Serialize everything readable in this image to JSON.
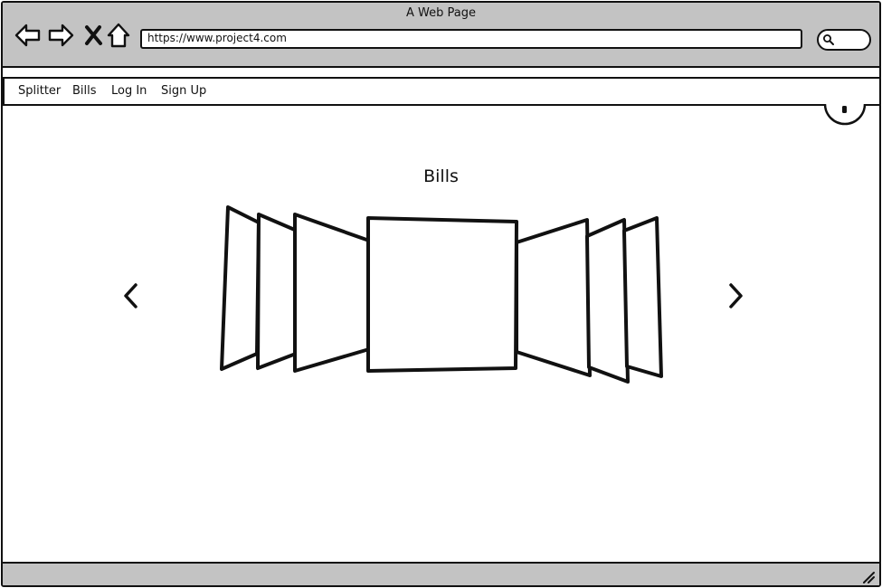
{
  "window": {
    "title": "A Web Page"
  },
  "browser": {
    "url": "https://www.project4.com",
    "buttons": [
      "back-arrow-icon",
      "forward-arrow-icon",
      "close-x-icon",
      "home-icon"
    ],
    "search_icon": "magnifier-icon"
  },
  "menu": {
    "items": [
      {
        "label": "Splitter"
      },
      {
        "label": "Bills"
      },
      {
        "label": "Log In"
      },
      {
        "label": "Sign Up"
      }
    ]
  },
  "header": {
    "profile_icon": "user-circle-icon"
  },
  "main": {
    "title": "Bills",
    "carousel": {
      "prev_icon": "chevron-left-icon",
      "next_icon": "chevron-right-icon",
      "slide_count": 7,
      "active_slide": 4
    }
  },
  "colors": {
    "chrome": "#c3c3c3",
    "stroke": "#111111",
    "background": "#ffffff"
  }
}
